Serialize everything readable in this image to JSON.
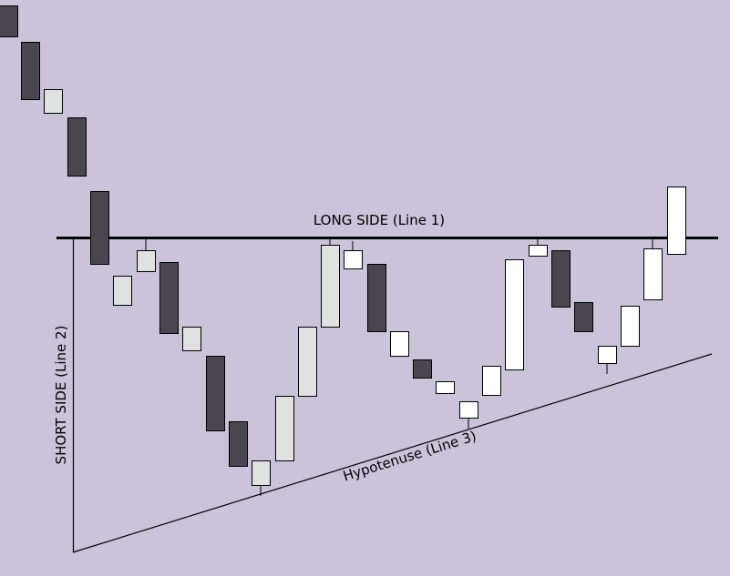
{
  "labels": {
    "long_side": "LONG SIDE (Line 1)",
    "short_side": "SHORT SIDE (Line 2)",
    "hypotenuse": "Hypotenuse (Line 3)"
  },
  "colors": {
    "background": "#cac3d9",
    "bearish_candle": "#4a4650",
    "neutral_candle": "#e0e2df",
    "bullish_candle": "#ffffff",
    "outline": "#000000"
  }
}
